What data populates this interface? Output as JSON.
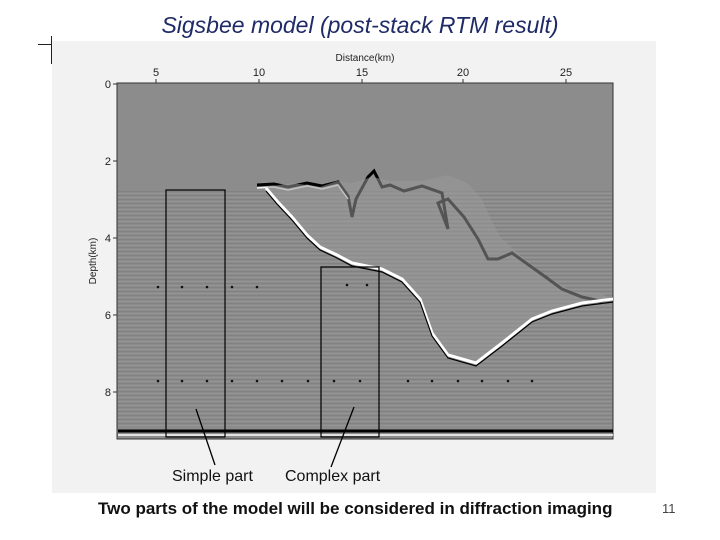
{
  "slide": {
    "title": "Sigsbee model (post-stack RTM result)",
    "caption": "Two parts of the model will be considered in diffraction imaging",
    "page_number": "11"
  },
  "figure": {
    "x_axis_label": "Distance(km)",
    "y_axis_label": "Depth(km)",
    "x_ticks": [
      "5",
      "10",
      "15",
      "20",
      "25"
    ],
    "y_ticks": [
      "0",
      "2",
      "4",
      "6",
      "8"
    ],
    "annotations": {
      "simple": "Simple part",
      "complex": "Complex part"
    }
  }
}
